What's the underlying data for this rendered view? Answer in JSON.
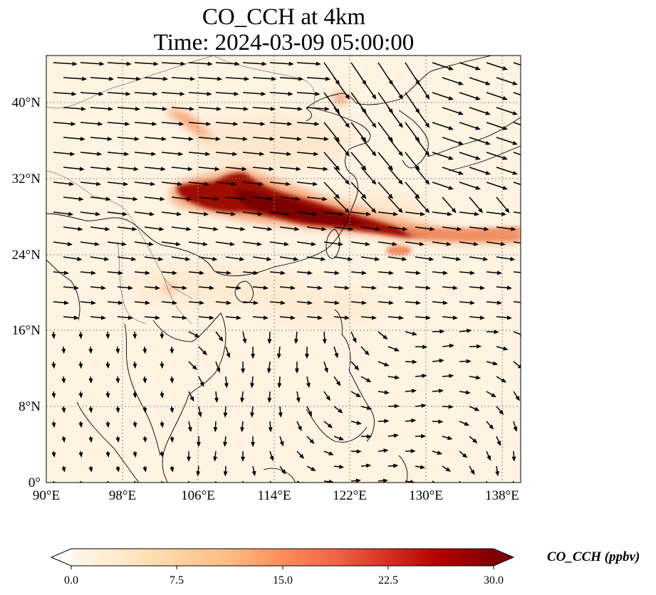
{
  "title": {
    "line1": "CO_CCH at 4km",
    "line2": "Time: 2024-03-09 05:00:00"
  },
  "map": {
    "projection": "PlateCarree",
    "lon_range": [
      90,
      140
    ],
    "lat_range": [
      0,
      45
    ],
    "lon_ticks": [
      "90°E",
      "98°E",
      "106°E",
      "114°E",
      "122°E",
      "130°E",
      "138°E"
    ],
    "lat_ticks": [
      "0°",
      "8°N",
      "16°N",
      "24°N",
      "32°N",
      "40°N"
    ],
    "background_color": "#fff3e2",
    "gridlines": "dotted grey",
    "overlay": "wind vectors (black arrows)",
    "features": "coastlines and country borders"
  },
  "colorbar": {
    "label": "CO_CCH (ppbv)",
    "ticks": [
      "0.0",
      "7.5",
      "15.0",
      "22.5",
      "30.0"
    ],
    "min": 0,
    "max": 30,
    "colormap": "OrRd",
    "extend": "both",
    "colors": [
      "#fff7ec",
      "#fee8c8",
      "#fdd49e",
      "#fdbb84",
      "#fc8d59",
      "#ef6548",
      "#d7301f",
      "#b30000",
      "#7f0000"
    ]
  }
}
